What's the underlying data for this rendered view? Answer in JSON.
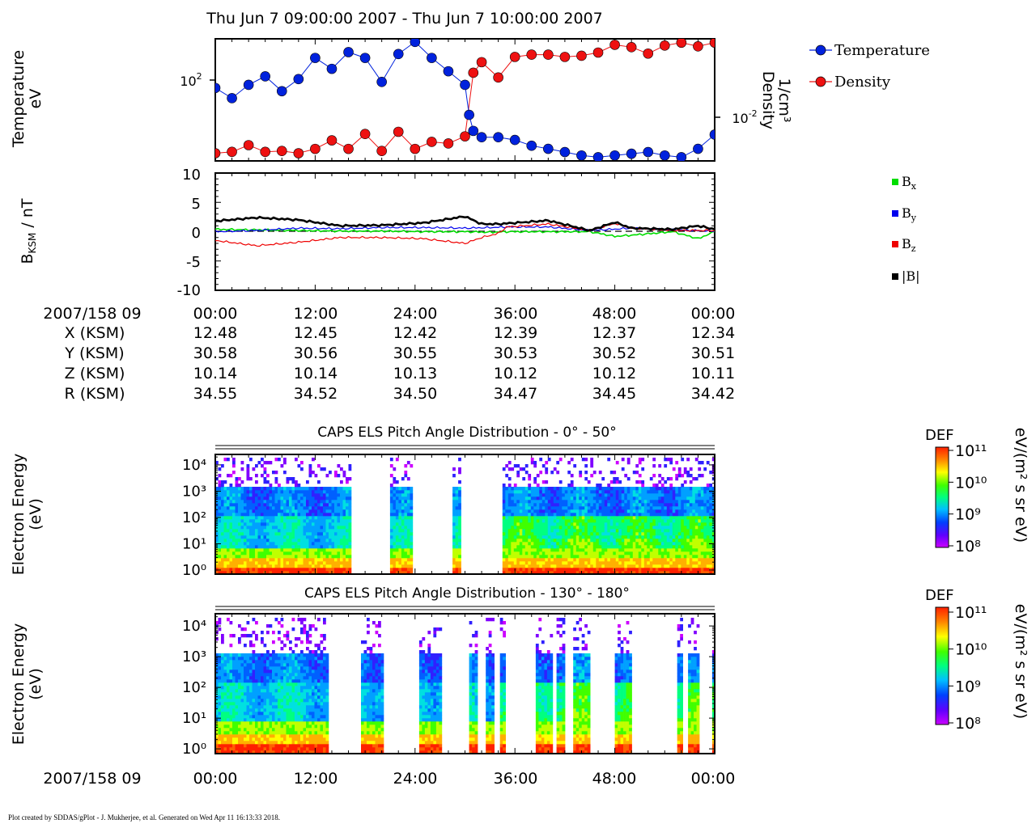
{
  "header": {
    "title": "Thu Jun 7 09:00:00 2007 - Thu Jun 7 10:00:00 2007"
  },
  "colors": {
    "temperature": "#0022dd",
    "density": "#ee1111",
    "bx": "#00dd00",
    "by": "#0000ee",
    "bz": "#ee0000",
    "btot": "#000000",
    "colorbar_stops": [
      "#cc00ff",
      "#6000ff",
      "#0040ff",
      "#00c0ff",
      "#00ff80",
      "#40ff00",
      "#ffff00",
      "#ff8000",
      "#ff2000"
    ]
  },
  "panel_labels": {
    "temperature_ylabel_1": "Temperature",
    "temperature_ylabel_2": "eV",
    "density_ylabel_1": "Density",
    "density_ylabel_2": "1/cm³",
    "b_ylabel": "nT",
    "b_prefix": "B",
    "b_sub": "KSM",
    "energy_ylabel_1": "Electron Energy",
    "energy_ylabel_2": "(eV)",
    "spec1_title": "CAPS ELS Pitch Angle Distribution - 0° - 50°",
    "spec2_title": "CAPS ELS Pitch Angle Distribution - 130° - 180°",
    "colorbar_label": "DEF",
    "colorbar_units": "eV/(m² s sr eV)"
  },
  "legend_plasma": [
    {
      "key": "temperature",
      "label": "Temperature"
    },
    {
      "key": "density",
      "label": "Density"
    }
  ],
  "legend_b": [
    {
      "key": "bx",
      "base": "B",
      "sub": "x"
    },
    {
      "key": "by",
      "base": "B",
      "sub": "y"
    },
    {
      "key": "bz",
      "base": "B",
      "sub": "z"
    },
    {
      "key": "btot",
      "base": "|B|",
      "sub": ""
    }
  ],
  "ephemeris": {
    "row_labels": [
      "2007/158 09",
      "X (KSM)",
      "Y (KSM)",
      "Z (KSM)",
      "R (KSM)"
    ],
    "times": [
      "00:00",
      "12:00",
      "24:00",
      "36:00",
      "48:00",
      "00:00"
    ],
    "X": [
      "12.48",
      "12.45",
      "12.42",
      "12.39",
      "12.37",
      "12.34"
    ],
    "Y": [
      "30.58",
      "30.56",
      "30.55",
      "30.53",
      "30.52",
      "30.51"
    ],
    "Z": [
      "10.14",
      "10.14",
      "10.13",
      "10.12",
      "10.12",
      "10.11"
    ],
    "R": [
      "34.55",
      "34.52",
      "34.50",
      "34.47",
      "34.45",
      "34.42"
    ]
  },
  "bottom_axis": {
    "label": "2007/158 09",
    "times": [
      "00:00",
      "12:00",
      "24:00",
      "36:00",
      "48:00",
      "00:00"
    ]
  },
  "footer": "Plot created by SDDAS/gPlot - J. Mukherjee, et al.  Generated on Wed Apr 11 16:13:33 2018.",
  "chart_data": [
    {
      "type": "line",
      "panel": "plasma moments",
      "x_units": "minutes after 09:00",
      "xlim": [
        0,
        60
      ],
      "temperature_axis": {
        "scale": "log",
        "ylim": [
          35,
          220
        ],
        "tick_labels": [
          "10²"
        ]
      },
      "density_axis": {
        "scale": "log",
        "ylim": [
          0.0041,
          0.44
        ],
        "tick_labels": [
          "10⁻²"
        ]
      },
      "series": [
        {
          "name": "Temperature",
          "x": [
            0,
            2,
            4,
            6,
            8,
            10,
            12,
            14,
            16,
            18,
            20,
            22,
            24,
            26,
            28,
            30,
            30.5,
            31,
            32,
            34,
            36,
            38,
            40,
            42,
            44,
            46,
            48,
            50,
            52,
            54,
            56,
            58,
            60
          ],
          "y": [
            105,
            90,
            110,
            125,
            100,
            120,
            165,
            140,
            180,
            165,
            115,
            175,
            210,
            165,
            135,
            110,
            70,
            55,
            50,
            50,
            48,
            44,
            42,
            40,
            38,
            37,
            38,
            39,
            40,
            38,
            37,
            42,
            52
          ]
        },
        {
          "name": "Density",
          "x": [
            0,
            2,
            4,
            6,
            8,
            10,
            12,
            14,
            16,
            18,
            20,
            22,
            24,
            26,
            28,
            30,
            31,
            32,
            34,
            36,
            38,
            40,
            42,
            44,
            46,
            48,
            50,
            52,
            54,
            56,
            58,
            60
          ],
          "y": [
            0.0055,
            0.0058,
            0.0075,
            0.0058,
            0.006,
            0.0055,
            0.0065,
            0.009,
            0.0065,
            0.0115,
            0.006,
            0.0125,
            0.0065,
            0.0085,
            0.008,
            0.0105,
            0.12,
            0.18,
            0.1,
            0.22,
            0.24,
            0.24,
            0.22,
            0.23,
            0.26,
            0.35,
            0.32,
            0.25,
            0.34,
            0.38,
            0.33,
            0.38
          ]
        }
      ]
    },
    {
      "type": "line",
      "panel": "magnetic field",
      "x_units": "minutes after 09:00",
      "xlim": [
        0,
        60
      ],
      "ylim": [
        -10,
        10
      ],
      "y_tick_labels": [
        "10",
        "5",
        "0",
        "-5",
        "-10"
      ],
      "series": [
        {
          "name": "Bx",
          "x": [
            0,
            5,
            10,
            15,
            20,
            25,
            30,
            33,
            35,
            40,
            45,
            48,
            50,
            55,
            58,
            60
          ],
          "y": [
            0.4,
            0.3,
            0.2,
            0.1,
            0.1,
            0.0,
            0.0,
            -0.1,
            0.0,
            0.0,
            0.0,
            -0.8,
            -0.6,
            0.0,
            -1.2,
            0.0
          ]
        },
        {
          "name": "By",
          "x": [
            0,
            5,
            10,
            15,
            20,
            25,
            30,
            33,
            35,
            40,
            45,
            50,
            55,
            60
          ],
          "y": [
            0.0,
            0.2,
            0.6,
            0.5,
            0.7,
            0.7,
            0.6,
            0.7,
            0.8,
            0.8,
            0.2,
            0.6,
            0.3,
            0.1
          ]
        },
        {
          "name": "Bz",
          "x": [
            0,
            5,
            10,
            15,
            20,
            25,
            30,
            32,
            34,
            35,
            40,
            45,
            48,
            50,
            55,
            60
          ],
          "y": [
            -1.5,
            -2.4,
            -1.8,
            -1.0,
            -1.0,
            -1.2,
            -2.0,
            -1.0,
            -0.3,
            0.8,
            1.3,
            0.2,
            1.4,
            0.6,
            0.2,
            0.2
          ]
        },
        {
          "name": "|B|",
          "x": [
            0,
            5,
            10,
            15,
            20,
            25,
            30,
            32,
            34,
            35,
            40,
            45,
            48,
            50,
            55,
            58,
            60
          ],
          "y": [
            1.8,
            2.4,
            2.0,
            1.0,
            1.1,
            1.5,
            2.6,
            1.3,
            1.3,
            1.4,
            1.9,
            0.2,
            1.6,
            0.6,
            0.4,
            1.0,
            0.4
          ]
        }
      ]
    },
    {
      "type": "heatmap",
      "panel": "CAPS ELS Pitch Angle Distribution - 0° - 50°",
      "y_scale": "log",
      "ylim": [
        0.7,
        25000
      ],
      "y_tick_labels": [
        "10⁴",
        "10³",
        "10²",
        "10¹",
        "10⁰"
      ],
      "colorbar": {
        "label": "DEF",
        "scale": "log",
        "range": [
          100000000.0,
          100000000000.0
        ],
        "tick_labels": [
          "10¹¹",
          "10¹⁰",
          "10⁹",
          "10⁸"
        ]
      },
      "data_intervals_minutes": [
        [
          0,
          16
        ],
        [
          21,
          23.5
        ],
        [
          28.5,
          29.3
        ],
        [
          34.5,
          60
        ]
      ]
    },
    {
      "type": "heatmap",
      "panel": "CAPS ELS Pitch Angle Distribution - 130° - 180°",
      "y_scale": "log",
      "ylim": [
        0.7,
        25000
      ],
      "y_tick_labels": [
        "10⁴",
        "10³",
        "10²",
        "10¹",
        "10⁰"
      ],
      "colorbar": {
        "label": "DEF",
        "scale": "log",
        "range": [
          100000000.0,
          100000000000.0
        ],
        "tick_labels": [
          "10¹¹",
          "10¹⁰",
          "10⁹",
          "10⁸"
        ]
      },
      "data_intervals_minutes": [
        [
          0,
          13.5
        ],
        [
          17.5,
          20
        ],
        [
          24.5,
          27
        ],
        [
          30.5,
          31.2
        ],
        [
          32.5,
          33.5
        ],
        [
          34.2,
          34.8
        ],
        [
          38.5,
          40.5
        ],
        [
          41,
          42
        ],
        [
          43,
          45
        ],
        [
          48,
          50
        ],
        [
          55.5,
          56
        ],
        [
          56.8,
          58
        ],
        [
          59.7,
          60
        ]
      ]
    }
  ]
}
